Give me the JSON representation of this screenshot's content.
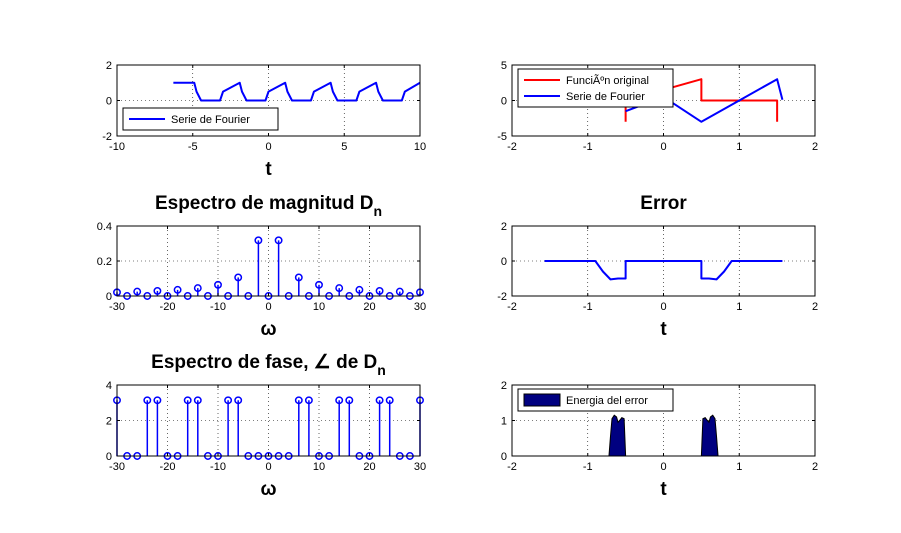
{
  "chart_data": [
    {
      "id": "p1",
      "type": "line",
      "title": "",
      "xlabel": "t",
      "xlim": [
        -10,
        10
      ],
      "ylim": [
        -2,
        2
      ],
      "xticks": [
        -10,
        -5,
        0,
        5,
        10
      ],
      "yticks": [
        -2,
        0,
        2
      ],
      "grid": true,
      "legend_position": "bottom-left",
      "series": [
        {
          "name": "Serie de Fourier",
          "color": "#0000ff",
          "x": [
            -6.28,
            -6.0,
            -5.5,
            -5.0,
            -4.9,
            -4.75,
            -4.45,
            -4.3,
            -4.0,
            -3.5,
            -3.2,
            -3.0,
            -1.9,
            -1.75,
            -1.45,
            -1.3,
            -1.0,
            -0.5,
            -0.2,
            0.0,
            1.1,
            1.25,
            1.55,
            1.7,
            2.0,
            2.5,
            2.8,
            3.0,
            4.1,
            4.25,
            4.55,
            4.7,
            5.0,
            5.5,
            5.8,
            6.0,
            7.1,
            7.25,
            7.55,
            7.7,
            8.0,
            8.5,
            8.8,
            9.0,
            10.0
          ],
          "values": [
            1.0,
            1.0,
            1.0,
            1.0,
            1.0,
            0.5,
            0.0,
            0.0,
            0.0,
            0.0,
            0.0,
            0.5,
            1.0,
            0.5,
            0.0,
            0.0,
            0.0,
            0.0,
            0.0,
            0.5,
            1.0,
            0.5,
            0.0,
            0.0,
            0.0,
            0.0,
            0.0,
            0.5,
            1.0,
            0.5,
            0.0,
            0.0,
            0.0,
            0.0,
            0.0,
            0.5,
            1.0,
            0.5,
            0.0,
            0.0,
            0.0,
            0.0,
            0.0,
            0.5,
            1.0
          ]
        }
      ]
    },
    {
      "id": "p2",
      "type": "line",
      "title": "",
      "xlabel": "",
      "xlim": [
        -2,
        2
      ],
      "ylim": [
        -5,
        5
      ],
      "xticks": [
        -2,
        -1,
        0,
        1,
        2
      ],
      "yticks": [
        -5,
        0,
        5
      ],
      "grid": true,
      "legend_position": "top-left",
      "series": [
        {
          "name": "FunciÃºn original",
          "color": "#ff0000",
          "x": [
            -0.5,
            -0.5,
            0.5,
            0.5,
            1.5,
            1.5
          ],
          "values": [
            -3,
            0,
            3,
            0,
            0,
            -3
          ]
        },
        {
          "name": "Serie de Fourier",
          "color": "#0000ff",
          "x": [
            -0.5,
            0.0,
            0.5,
            1.0,
            1.5,
            1.57
          ],
          "values": [
            -1.5,
            0.5,
            -3.0,
            0.0,
            3.0,
            0.1
          ]
        }
      ]
    },
    {
      "id": "p3",
      "type": "stem",
      "title": "Espectro de magnitud D",
      "title_sub": "n",
      "xlabel": "ω",
      "xlim": [
        -30,
        30
      ],
      "ylim": [
        0,
        0.4
      ],
      "xticks": [
        -30,
        -20,
        -10,
        0,
        10,
        20,
        30
      ],
      "yticks": [
        0,
        0.2,
        0.4
      ],
      "grid": true,
      "series": [
        {
          "color": "#0000ff",
          "x": [
            -30,
            -28,
            -26,
            -24,
            -22,
            -20,
            -18,
            -16,
            -14,
            -12,
            -10,
            -8,
            -6,
            -4,
            -2,
            0,
            2,
            4,
            6,
            8,
            10,
            12,
            14,
            16,
            18,
            20,
            22,
            24,
            26,
            28,
            30
          ],
          "values": [
            0.021,
            0.0,
            0.025,
            0.0,
            0.029,
            0.0,
            0.035,
            0.0,
            0.045,
            0.0,
            0.064,
            0.0,
            0.106,
            0.0,
            0.318,
            0.0,
            0.318,
            0.0,
            0.106,
            0.0,
            0.064,
            0.0,
            0.045,
            0.0,
            0.035,
            0.0,
            0.029,
            0.0,
            0.025,
            0.0,
            0.021
          ]
        }
      ]
    },
    {
      "id": "p4",
      "type": "line",
      "title": "Error",
      "xlabel": "t",
      "xlim": [
        -2,
        2
      ],
      "ylim": [
        -2,
        2
      ],
      "xticks": [
        -2,
        -1,
        0,
        1,
        2
      ],
      "yticks": [
        -2,
        0,
        2
      ],
      "grid": true,
      "series": [
        {
          "color": "#0000ff",
          "x": [
            -1.57,
            -0.9,
            -0.8,
            -0.7,
            -0.6,
            -0.5,
            -0.5,
            0.5,
            0.5,
            0.6,
            0.7,
            0.8,
            0.9,
            1.57
          ],
          "values": [
            0.0,
            0.0,
            -0.6,
            -1.05,
            -1.0,
            -1.0,
            0.0,
            0.0,
            -1.0,
            -1.0,
            -1.05,
            -0.6,
            0.0,
            0.0
          ]
        }
      ]
    },
    {
      "id": "p5",
      "type": "stem",
      "title": "Espectro de fase, ∠ de D",
      "title_sub": "n",
      "xlabel": "ω",
      "xlim": [
        -30,
        30
      ],
      "ylim": [
        0,
        4
      ],
      "xticks": [
        -30,
        -20,
        -10,
        0,
        10,
        20,
        30
      ],
      "yticks": [
        0,
        2,
        4
      ],
      "grid": true,
      "series": [
        {
          "color": "#0000ff",
          "x": [
            -30,
            -28,
            -26,
            -24,
            -22,
            -20,
            -18,
            -16,
            -14,
            -12,
            -10,
            -8,
            -6,
            -4,
            -2,
            0,
            2,
            4,
            6,
            8,
            10,
            12,
            14,
            16,
            18,
            20,
            22,
            24,
            26,
            28,
            30
          ],
          "values": [
            3.14,
            0.0,
            0.0,
            3.14,
            3.14,
            0.0,
            0.0,
            3.14,
            3.14,
            0.0,
            0.0,
            3.14,
            3.14,
            0.0,
            0.0,
            0.0,
            0.0,
            0.0,
            3.14,
            3.14,
            0.0,
            0.0,
            3.14,
            3.14,
            0.0,
            0.0,
            3.14,
            3.14,
            0.0,
            0.0,
            3.14
          ]
        }
      ]
    },
    {
      "id": "p6",
      "type": "area",
      "title": "",
      "xlabel": "t",
      "xlim": [
        -2,
        2
      ],
      "ylim": [
        0,
        2
      ],
      "xticks": [
        -2,
        -1,
        0,
        1,
        2
      ],
      "yticks": [
        0,
        1,
        2
      ],
      "grid": true,
      "legend_position": "top-left",
      "series": [
        {
          "name": "Energia del error",
          "color": "#000080",
          "x": [
            -1.57,
            -0.72,
            -0.7,
            -0.68,
            -0.65,
            -0.62,
            -0.6,
            -0.58,
            -0.55,
            -0.52,
            -0.5,
            -0.5,
            0.5,
            0.5,
            0.52,
            0.55,
            0.58,
            0.6,
            0.62,
            0.65,
            0.68,
            0.7,
            0.72,
            1.57
          ],
          "values": [
            0.0,
            0.0,
            0.55,
            1.05,
            1.15,
            1.1,
            0.95,
            1.0,
            1.08,
            1.05,
            0.0,
            0.0,
            0.0,
            0.0,
            1.05,
            1.08,
            1.0,
            0.95,
            1.1,
            1.15,
            1.05,
            0.55,
            0.0,
            0.0
          ]
        }
      ]
    }
  ]
}
